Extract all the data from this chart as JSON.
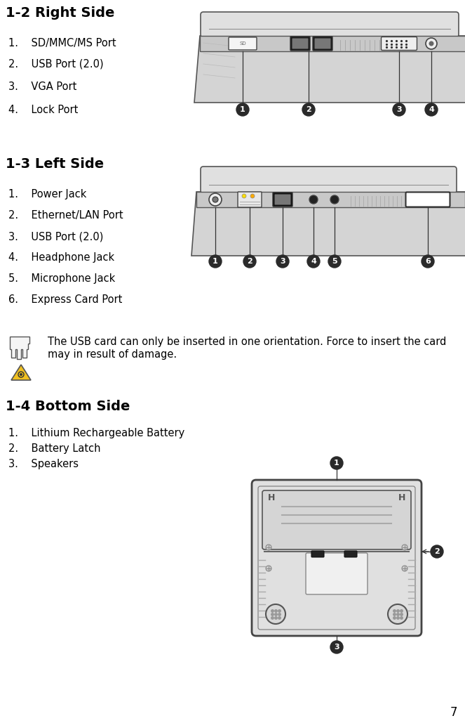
{
  "title_1": "1-2 Right Side",
  "title_2": "1-3 Left Side",
  "title_3": "1-4 Bottom Side",
  "section1_items": [
    "1.    SD/MMC/MS Port",
    "2.    USB Port (2.0)",
    "3.    VGA Port",
    "4.    Lock Port"
  ],
  "section2_items": [
    "1.    Power Jack",
    "2.    Ethernet/LAN Port",
    "3.    USB Port (2.0)",
    "4.    Headphone Jack",
    "5.    Microphone Jack",
    "6.    Express Card Port"
  ],
  "section3_items": [
    "1.    Lithium Rechargeable Battery",
    "2.    Battery Latch",
    "3.    Speakers"
  ],
  "warning_line1": "The USB card can only be inserted in one orientation. Force to insert the card",
  "warning_line2": "may in result of damage.",
  "page_number": "7",
  "bg_color": "#ffffff",
  "text_color": "#000000",
  "title_fontsize": 14,
  "body_fontsize": 10.5
}
